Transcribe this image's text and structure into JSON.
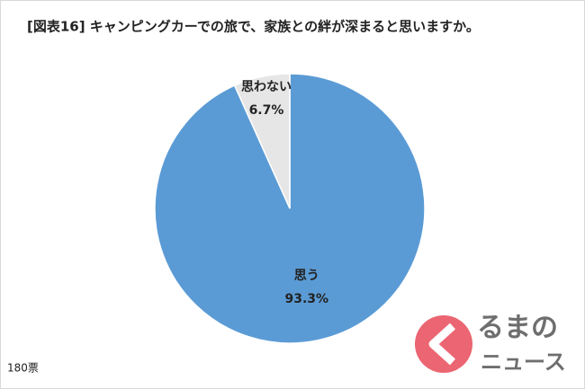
{
  "chart_data": {
    "type": "pie",
    "title": "[図表16] キャンピングカーでの旅で、家族との絆が深まると思いますか。",
    "categories": [
      "思う",
      "思わない"
    ],
    "values": [
      93.3,
      6.7
    ],
    "value_labels": [
      "93.3%",
      "6.7%"
    ],
    "colors": [
      "#5b9bd5",
      "#e7e6e6"
    ],
    "note": "180票"
  },
  "watermark": {
    "line1": "るまの",
    "line2": "ニュース"
  }
}
